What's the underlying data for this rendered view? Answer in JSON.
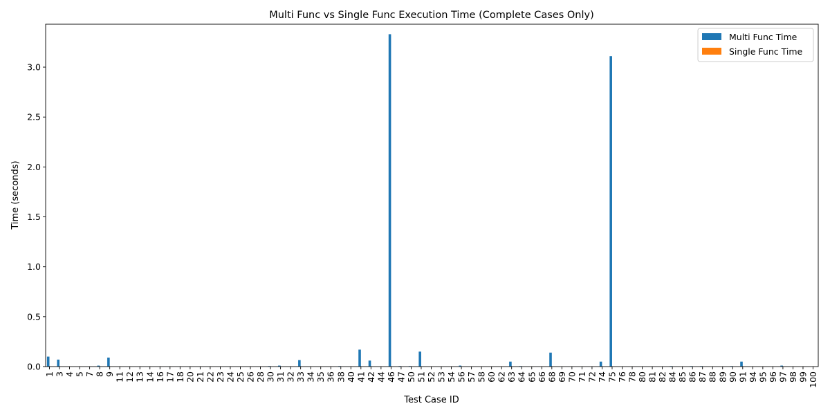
{
  "chart_data": {
    "type": "bar",
    "title": "Multi Func vs Single Func Execution Time (Complete Cases Only)",
    "xlabel": "Test Case ID",
    "ylabel": "Time (seconds)",
    "ylim": [
      0,
      3.43
    ],
    "yticks": [
      0.0,
      0.5,
      1.0,
      1.5,
      2.0,
      2.5,
      3.0
    ],
    "ytick_labels": [
      "0.0",
      "0.5",
      "1.0",
      "1.5",
      "2.0",
      "2.5",
      "3.0"
    ],
    "legend_position": "top-right",
    "categories": [
      "1",
      "3",
      "4",
      "5",
      "7",
      "8",
      "9",
      "11",
      "12",
      "13",
      "14",
      "16",
      "17",
      "18",
      "20",
      "21",
      "22",
      "23",
      "24",
      "25",
      "26",
      "28",
      "30",
      "31",
      "32",
      "33",
      "34",
      "35",
      "36",
      "38",
      "40",
      "41",
      "42",
      "44",
      "46",
      "47",
      "50",
      "51",
      "52",
      "53",
      "54",
      "56",
      "57",
      "58",
      "60",
      "62",
      "63",
      "64",
      "65",
      "66",
      "68",
      "69",
      "70",
      "71",
      "72",
      "74",
      "75",
      "76",
      "78",
      "80",
      "81",
      "82",
      "84",
      "85",
      "86",
      "87",
      "88",
      "89",
      "90",
      "91",
      "94",
      "95",
      "96",
      "97",
      "98",
      "99",
      "100"
    ],
    "series": [
      {
        "name": "Multi Func Time",
        "color": "#1f77b4",
        "values": [
          0.1,
          0.07,
          0,
          0,
          0,
          0.01,
          0.09,
          0,
          0,
          0,
          0,
          0,
          0,
          0,
          0,
          0,
          0,
          0,
          0,
          0,
          0,
          0,
          0.005,
          0.01,
          0,
          0.065,
          0,
          0,
          0,
          0.005,
          0,
          0.17,
          0.06,
          0,
          3.33,
          0.005,
          0.005,
          0.15,
          0,
          0,
          0,
          0.01,
          0,
          0,
          0,
          0,
          0.05,
          0.005,
          0,
          0,
          0.14,
          0,
          0,
          0,
          0,
          0.05,
          3.11,
          0,
          0,
          0,
          0,
          0,
          0.005,
          0,
          0.005,
          0.005,
          0,
          0,
          0.005,
          0.05,
          0,
          0,
          0,
          0.01,
          0,
          0,
          0
        ]
      },
      {
        "name": "Single Func Time",
        "color": "#ff7f0e",
        "values": [
          0.001,
          0.001,
          0.001,
          0.001,
          0.001,
          0.001,
          0.001,
          0.001,
          0.001,
          0.001,
          0.001,
          0.001,
          0.001,
          0.001,
          0.001,
          0.001,
          0.001,
          0.001,
          0.001,
          0.001,
          0.001,
          0.001,
          0.001,
          0.001,
          0.001,
          0.001,
          0.001,
          0.001,
          0.001,
          0.001,
          0.001,
          0.001,
          0.001,
          0.001,
          0.001,
          0.001,
          0.001,
          0.001,
          0.001,
          0.001,
          0.001,
          0.001,
          0.001,
          0.001,
          0.001,
          0.001,
          0.001,
          0.001,
          0.001,
          0.001,
          0.001,
          0.001,
          0.001,
          0.001,
          0.001,
          0.001,
          0.001,
          0.001,
          0.001,
          0.001,
          0.001,
          0.001,
          0.001,
          0.001,
          0.001,
          0.001,
          0.001,
          0.001,
          0.001,
          0.001,
          0.001,
          0.001,
          0.001,
          0.001,
          0.001,
          0.001,
          0.001
        ]
      }
    ]
  }
}
